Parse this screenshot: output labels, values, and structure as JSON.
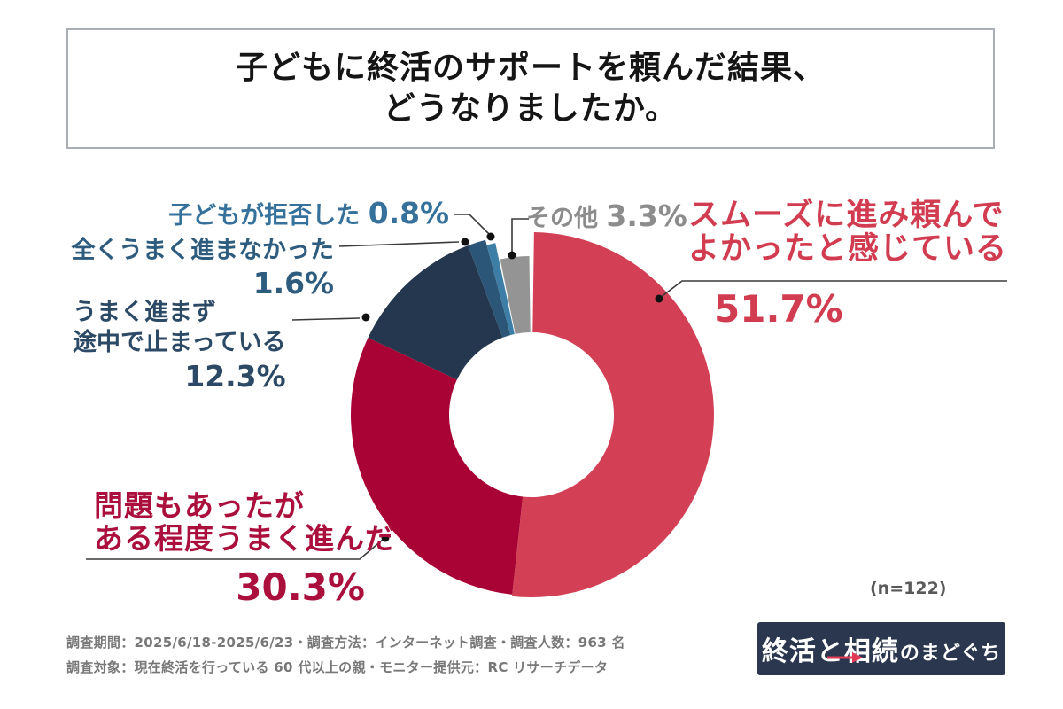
{
  "title": {
    "line1": "子どもに終活のサポートを頼んだ結果、",
    "line2": "どうなりましたか。"
  },
  "sample_size": "(n=122)",
  "chart_data": {
    "type": "pie",
    "subtype": "donut",
    "title": "子どもに終活のサポートを頼んだ結果、どうなりましたか。",
    "unit": "%",
    "n_label": "(n=122)",
    "start_angle_deg": 0,
    "direction": "clockwise",
    "segments": [
      {
        "label": "スムーズに進み頼んでよかったと感じている",
        "value": 51.7,
        "color": "#d34055",
        "radius_hint": 206
      },
      {
        "label": "問題もあったがある程度うまく進んだ",
        "value": 30.3,
        "color": "#a90336",
        "radius_hint": 204
      },
      {
        "label": "うまく進まず途中で止まっている",
        "value": 12.3,
        "color": "#24374e",
        "radius_hint": 204
      },
      {
        "label": "全くうまく進まなかった",
        "value": 1.6,
        "color": "#2b5677",
        "radius_hint": 204
      },
      {
        "label": "子どもが拒否した",
        "value": 0.8,
        "color": "#3d7ea6",
        "radius_hint": 198
      },
      {
        "label": "その他",
        "value": 3.3,
        "color": "#949494",
        "radius_hint": 179
      }
    ]
  },
  "callouts": {
    "smooth": {
      "line1": "スムーズに進み頼んで",
      "line2": "よかったと感じている",
      "value": "51.7%",
      "color": "#d23c50"
    },
    "mondai": {
      "line1": "問題もあったが",
      "line2": "ある程度うまく進んだ",
      "value": "30.3%",
      "color": "#ab0f3c"
    },
    "umaku": {
      "line1": "うまく進まず",
      "line2": "途中で止まっている",
      "value": "12.3%",
      "color": "#2c4a66"
    },
    "mattaku": {
      "label": "全くうまく進まなかった",
      "value": "1.6%",
      "color": "#2e5c7e"
    },
    "kyohi": {
      "label": "子どもが拒否した",
      "value": "0.8%",
      "color": "#35719b"
    },
    "sonota": {
      "label": "その他",
      "value": "3.3%",
      "color": "#8c8c8c"
    }
  },
  "footer": {
    "line1": "調査期間：2025/6/18-2025/6/23・調査方法：インターネット調査・調査人数：963 名",
    "line2": "調査対象：現在終活を行っている 60 代以上の親・モニター提供元：RC リサーチデータ"
  },
  "logo": {
    "main": "終活と相続",
    "suffix": "のまどぐち",
    "bg_color": "#2a374f",
    "arrow_color": "#e03a56"
  }
}
